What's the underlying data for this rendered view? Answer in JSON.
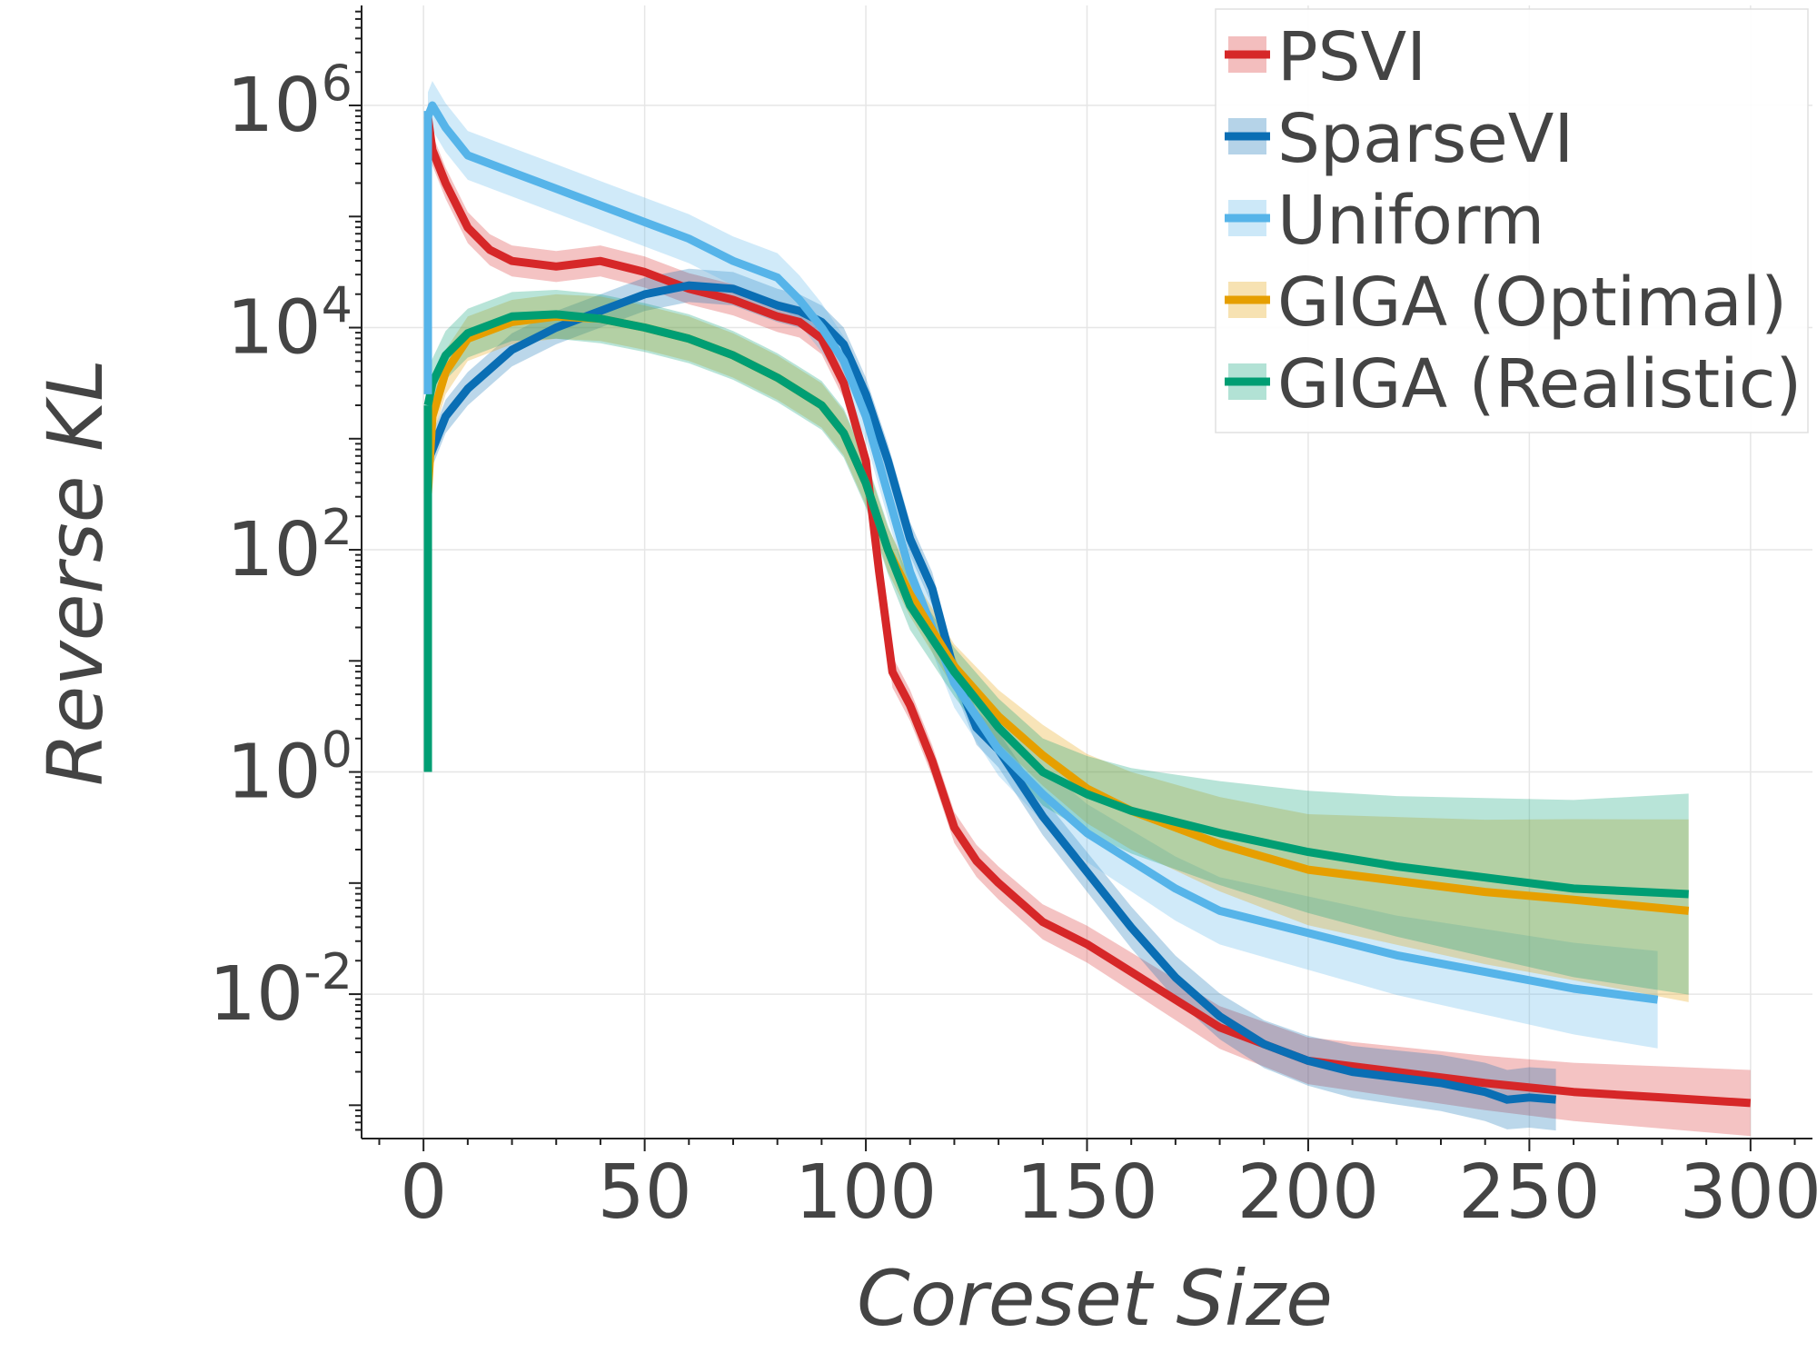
{
  "chart_data": {
    "type": "line",
    "xlabel": "Coreset Size",
    "ylabel": "Reverse KL",
    "xlim": [
      -14,
      314
    ],
    "ylim_log10": [
      -3.3,
      6.9
    ],
    "y_scale": "log",
    "x_ticks": [
      "0",
      "50",
      "100",
      "150",
      "200",
      "250",
      "300"
    ],
    "x_tick_values": [
      0,
      50,
      100,
      150,
      200,
      250,
      300
    ],
    "y_ticks": [
      {
        "base": "10",
        "exp": "6"
      },
      {
        "base": "10",
        "exp": "4"
      },
      {
        "base": "10",
        "exp": "2"
      },
      {
        "base": "10",
        "exp": "0"
      },
      {
        "base": "10",
        "exp": "-2"
      }
    ],
    "y_tick_log10": [
      6,
      4,
      2,
      0,
      -2
    ],
    "grid": true,
    "legend_position": "top-right",
    "series": [
      {
        "name": "PSVI",
        "color": "#d62728",
        "band": 0.14,
        "x": [
          1,
          2,
          5,
          10,
          15,
          20,
          30,
          40,
          50,
          60,
          70,
          80,
          85,
          90,
          95,
          100,
          103,
          106,
          110,
          115,
          120,
          125,
          130,
          140,
          150,
          160,
          170,
          180,
          190,
          200,
          220,
          240,
          260,
          280,
          300
        ],
        "log10": [
          5.9,
          5.6,
          5.3,
          4.9,
          4.7,
          4.6,
          4.55,
          4.6,
          4.5,
          4.35,
          4.25,
          4.1,
          4.05,
          3.9,
          3.5,
          2.8,
          1.8,
          0.9,
          0.6,
          0.1,
          -0.5,
          -0.8,
          -1.0,
          -1.35,
          -1.55,
          -1.8,
          -2.05,
          -2.3,
          -2.45,
          -2.6,
          -2.7,
          -2.8,
          -2.88,
          -2.93,
          -2.98
        ]
      },
      {
        "name": "SparseVI",
        "color": "#0a6eb4",
        "band": 0.15,
        "x": [
          1,
          3,
          5,
          10,
          20,
          30,
          40,
          50,
          60,
          70,
          80,
          85,
          90,
          95,
          100,
          105,
          110,
          115,
          120,
          125,
          130,
          140,
          150,
          160,
          170,
          180,
          190,
          200,
          210,
          220,
          230,
          240,
          245,
          250,
          256
        ],
        "log10": [
          2.8,
          3.0,
          3.2,
          3.45,
          3.8,
          4.0,
          4.15,
          4.3,
          4.38,
          4.35,
          4.2,
          4.15,
          4.05,
          3.85,
          3.4,
          2.8,
          2.1,
          1.65,
          0.9,
          0.4,
          0.2,
          -0.4,
          -0.9,
          -1.4,
          -1.85,
          -2.2,
          -2.45,
          -2.6,
          -2.7,
          -2.75,
          -2.8,
          -2.88,
          -2.95,
          -2.93,
          -2.95
        ]
      },
      {
        "name": "Uniform",
        "color": "#56b4e9",
        "band": 0.22,
        "x": [
          1,
          2,
          5,
          10,
          20,
          30,
          40,
          50,
          60,
          70,
          80,
          85,
          90,
          95,
          100,
          105,
          110,
          115,
          120,
          125,
          130,
          140,
          150,
          160,
          170,
          180,
          200,
          220,
          240,
          260,
          279
        ],
        "log10": [
          5.9,
          6.0,
          5.8,
          5.55,
          5.4,
          5.25,
          5.1,
          4.95,
          4.8,
          4.6,
          4.45,
          4.25,
          4.0,
          3.7,
          3.2,
          2.5,
          1.8,
          1.3,
          0.8,
          0.5,
          0.2,
          -0.2,
          -0.55,
          -0.8,
          -1.05,
          -1.25,
          -1.45,
          -1.65,
          -1.8,
          -1.95,
          -2.05
        ]
      },
      {
        "name": "GIGA (Optimal)",
        "color": "#e69f00",
        "band": 0.2,
        "x": [
          1,
          2,
          5,
          10,
          20,
          30,
          40,
          50,
          60,
          70,
          80,
          90,
          95,
          100,
          105,
          110,
          120,
          130,
          140,
          150,
          160,
          180,
          200,
          220,
          240,
          260,
          286
        ],
        "log10": [
          2.5,
          3.2,
          3.6,
          3.9,
          4.05,
          4.1,
          4.08,
          4.0,
          3.9,
          3.75,
          3.55,
          3.3,
          3.05,
          2.6,
          2.0,
          1.6,
          0.95,
          0.5,
          0.15,
          -0.15,
          -0.35,
          -0.65,
          -0.88,
          -0.98,
          -1.08,
          -1.15,
          -1.25
        ]
      },
      {
        "name": "GIGA (Realistic)",
        "color": "#009e73",
        "band": 0.22,
        "x": [
          1,
          2,
          5,
          10,
          20,
          30,
          40,
          50,
          60,
          70,
          80,
          90,
          95,
          100,
          105,
          110,
          120,
          130,
          140,
          150,
          160,
          180,
          200,
          220,
          240,
          260,
          286
        ],
        "log10": [
          3.3,
          3.5,
          3.75,
          3.95,
          4.1,
          4.12,
          4.08,
          4.0,
          3.9,
          3.75,
          3.55,
          3.3,
          3.05,
          2.6,
          2.0,
          1.5,
          0.9,
          0.4,
          0.0,
          -0.2,
          -0.35,
          -0.55,
          -0.72,
          -0.85,
          -0.95,
          -1.05,
          -1.1
        ]
      }
    ]
  }
}
